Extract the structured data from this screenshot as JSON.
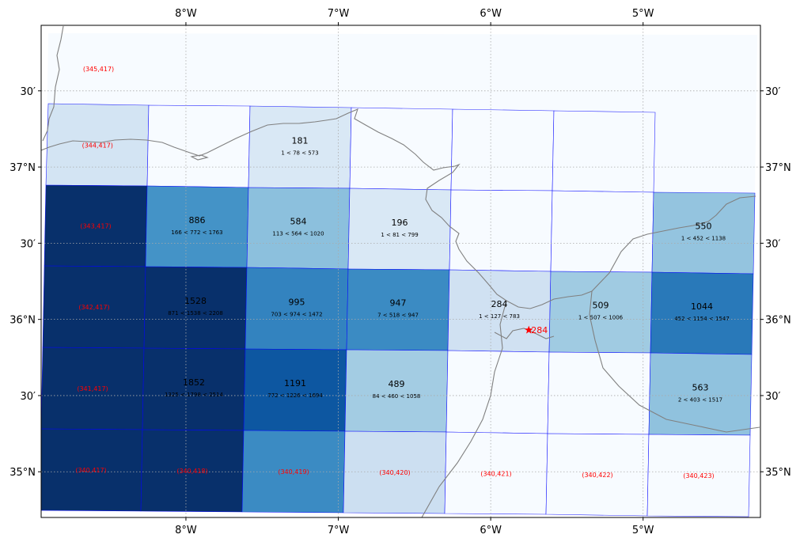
{
  "map": {
    "lon_range": [
      -8.95,
      -4.23
    ],
    "lat_range": [
      34.7,
      37.93
    ],
    "lon_ticks": [
      {
        "value": -8,
        "label": "8°W"
      },
      {
        "value": -7,
        "label": "7°W"
      },
      {
        "value": -6,
        "label": "6°W"
      },
      {
        "value": -5,
        "label": "5°W"
      }
    ],
    "lat_ticks": [
      {
        "value": 35.0,
        "label": "35°N"
      },
      {
        "value": 35.5,
        "label": "30′"
      },
      {
        "value": 36.0,
        "label": "36°N"
      },
      {
        "value": 36.5,
        "label": "30′"
      },
      {
        "value": 37.0,
        "label": "37°N"
      },
      {
        "value": 37.5,
        "label": "30′"
      }
    ],
    "colors": {
      "grid_line": "#aaaaaa",
      "coastline": "#808080",
      "cell_border": "#0000ff",
      "cell_id_text": "#ff0000",
      "marker": "#ff0000",
      "background_shade": "#f7fbff"
    },
    "cells": [
      {
        "row": 0,
        "col": 0,
        "label": "(345,417)",
        "count": "",
        "range": "",
        "shade": 0.0
      },
      {
        "row": 1,
        "col": 0,
        "label": "(344,417)",
        "count": "",
        "range": "",
        "shade": 0.18
      },
      {
        "row": 1,
        "col": 1,
        "label": "",
        "count": "",
        "range": "",
        "shade": 0.0
      },
      {
        "row": 1,
        "col": 2,
        "label": "",
        "count": "181",
        "range": "1 < 78 < 573",
        "shade": 0.15
      },
      {
        "row": 1,
        "col": 3,
        "label": "",
        "count": "",
        "range": "",
        "shade": 0.0
      },
      {
        "row": 1,
        "col": 4,
        "label": "",
        "count": "",
        "range": "",
        "shade": 0.0
      },
      {
        "row": 1,
        "col": 5,
        "label": "",
        "count": "",
        "range": "",
        "shade": 0.0
      },
      {
        "row": 2,
        "col": 0,
        "label": "(343,417)",
        "count": "",
        "range": "",
        "shade": 1.0
      },
      {
        "row": 2,
        "col": 1,
        "label": "",
        "count": "886",
        "range": "166 < 772 < 1763",
        "shade": 0.62
      },
      {
        "row": 2,
        "col": 2,
        "label": "",
        "count": "584",
        "range": "113 < 564 < 1020",
        "shade": 0.42
      },
      {
        "row": 2,
        "col": 3,
        "label": "",
        "count": "196",
        "range": "1 < 81 < 799",
        "shade": 0.15
      },
      {
        "row": 2,
        "col": 4,
        "label": "",
        "count": "",
        "range": "",
        "shade": 0.0
      },
      {
        "row": 2,
        "col": 5,
        "label": "",
        "count": "",
        "range": "",
        "shade": 0.0
      },
      {
        "row": 2,
        "col": 6,
        "label": "",
        "count": "550",
        "range": "1 < 452 < 1138",
        "shade": 0.4
      },
      {
        "row": 3,
        "col": 0,
        "label": "(342,417)",
        "count": "",
        "range": "",
        "shade": 1.0
      },
      {
        "row": 3,
        "col": 1,
        "label": "",
        "count": "1528",
        "range": "871 < 1538 < 2208",
        "shade": 1.0
      },
      {
        "row": 3,
        "col": 2,
        "label": "",
        "count": "995",
        "range": "703 < 974 < 1472",
        "shade": 0.68
      },
      {
        "row": 3,
        "col": 3,
        "label": "",
        "count": "947",
        "range": "7 < 518 < 947",
        "shade": 0.65
      },
      {
        "row": 3,
        "col": 4,
        "label": "",
        "count": "284",
        "range": "1 < 127 < 783",
        "shade": 0.2
      },
      {
        "row": 3,
        "col": 5,
        "label": "",
        "count": "509",
        "range": "1 < 507 < 1006",
        "shade": 0.37
      },
      {
        "row": 3,
        "col": 6,
        "label": "",
        "count": "1044",
        "range": "452 < 1154 < 1547",
        "shade": 0.72
      },
      {
        "row": 4,
        "col": 0,
        "label": "(341,417)",
        "count": "",
        "range": "",
        "shade": 1.0
      },
      {
        "row": 4,
        "col": 1,
        "label": "",
        "count": "1852",
        "range": "1325 < 1798 < 2514",
        "shade": 1.0
      },
      {
        "row": 4,
        "col": 2,
        "label": "",
        "count": "1191",
        "range": "772 < 1226 < 1694",
        "shade": 0.85
      },
      {
        "row": 4,
        "col": 3,
        "label": "",
        "count": "489",
        "range": "84 < 460 < 1058",
        "shade": 0.36
      },
      {
        "row": 4,
        "col": 4,
        "label": "",
        "count": "",
        "range": "",
        "shade": 0.0
      },
      {
        "row": 4,
        "col": 5,
        "label": "",
        "count": "",
        "range": "",
        "shade": 0.0
      },
      {
        "row": 4,
        "col": 6,
        "label": "",
        "count": "563",
        "range": "2 < 403 < 1517",
        "shade": 0.41
      },
      {
        "row": 5,
        "col": 0,
        "label": "(340,417)",
        "count": "",
        "range": "",
        "shade": 1.0
      },
      {
        "row": 5,
        "col": 1,
        "label": "(340,418)",
        "count": "",
        "range": "",
        "shade": 1.0
      },
      {
        "row": 5,
        "col": 2,
        "label": "(340,419)",
        "count": "",
        "range": "",
        "shade": 0.65
      },
      {
        "row": 5,
        "col": 3,
        "label": "(340,420)",
        "count": "",
        "range": "",
        "shade": 0.22
      },
      {
        "row": 5,
        "col": 4,
        "label": "(340,421)",
        "count": "",
        "range": "",
        "shade": 0.0
      },
      {
        "row": 5,
        "col": 5,
        "label": "(340,422)",
        "count": "",
        "range": "",
        "shade": 0.0
      },
      {
        "row": 5,
        "col": 6,
        "label": "(340,423)",
        "count": "",
        "range": "",
        "shade": 0.0
      }
    ],
    "marker": {
      "lon": -5.75,
      "lat": 35.93,
      "label": "284"
    }
  }
}
